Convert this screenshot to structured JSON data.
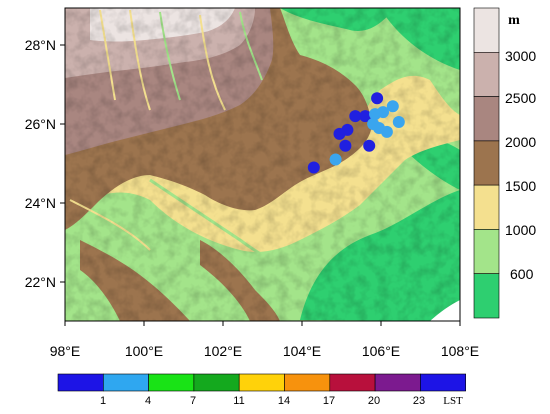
{
  "map": {
    "lat_labels": [
      "28°N",
      "26°N",
      "24°N",
      "22°N"
    ],
    "lon_labels": [
      "98°E",
      "100°E",
      "102°E",
      "104°E",
      "106°E",
      "108°E"
    ],
    "lat_values": [
      28,
      26,
      24,
      22
    ],
    "lon_values": [
      98,
      100,
      102,
      104,
      106,
      108
    ],
    "lat_range": [
      21,
      29
    ],
    "lon_range": [
      98,
      108
    ],
    "stations": [
      {
        "lon": 105.9,
        "lat": 26.65,
        "color": "#2020e0"
      },
      {
        "lon": 105.6,
        "lat": 26.2,
        "color": "#2020e0"
      },
      {
        "lon": 105.35,
        "lat": 26.2,
        "color": "#2020e0"
      },
      {
        "lon": 105.15,
        "lat": 25.85,
        "color": "#2020e0"
      },
      {
        "lon": 104.95,
        "lat": 25.75,
        "color": "#2020e0"
      },
      {
        "lon": 105.1,
        "lat": 25.45,
        "color": "#2020e0"
      },
      {
        "lon": 105.7,
        "lat": 25.45,
        "color": "#2020e0"
      },
      {
        "lon": 104.3,
        "lat": 24.9,
        "color": "#2020e0"
      },
      {
        "lon": 105.85,
        "lat": 26.25,
        "color": "#3aa5ee"
      },
      {
        "lon": 106.05,
        "lat": 26.3,
        "color": "#3aa5ee"
      },
      {
        "lon": 106.3,
        "lat": 26.45,
        "color": "#3aa5ee"
      },
      {
        "lon": 106.45,
        "lat": 26.05,
        "color": "#3aa5ee"
      },
      {
        "lon": 105.8,
        "lat": 26.0,
        "color": "#3aa5ee"
      },
      {
        "lon": 105.95,
        "lat": 25.9,
        "color": "#3aa5ee"
      },
      {
        "lon": 106.15,
        "lat": 25.8,
        "color": "#3aa5ee"
      },
      {
        "lon": 104.85,
        "lat": 25.1,
        "color": "#3aa5ee"
      }
    ]
  },
  "elevation_legend": {
    "unit": "m",
    "labels": [
      "3000",
      "2500",
      "2000",
      "1500",
      "1000",
      "600"
    ],
    "colors": [
      "#ece4e2",
      "#cbb1ad",
      "#a98680",
      "#9c744e",
      "#f4e08f",
      "#a3e48a",
      "#2ecf70"
    ]
  },
  "time_legend": {
    "labels": [
      "1",
      "4",
      "7",
      "11",
      "14",
      "17",
      "20",
      "23",
      "LST"
    ],
    "colors": [
      "#1d14e6",
      "#2fa7f0",
      "#19e316",
      "#14a91e",
      "#ffd20a",
      "#f7920d",
      "#b8103c",
      "#7c1a8f",
      "#1d14e6"
    ]
  }
}
